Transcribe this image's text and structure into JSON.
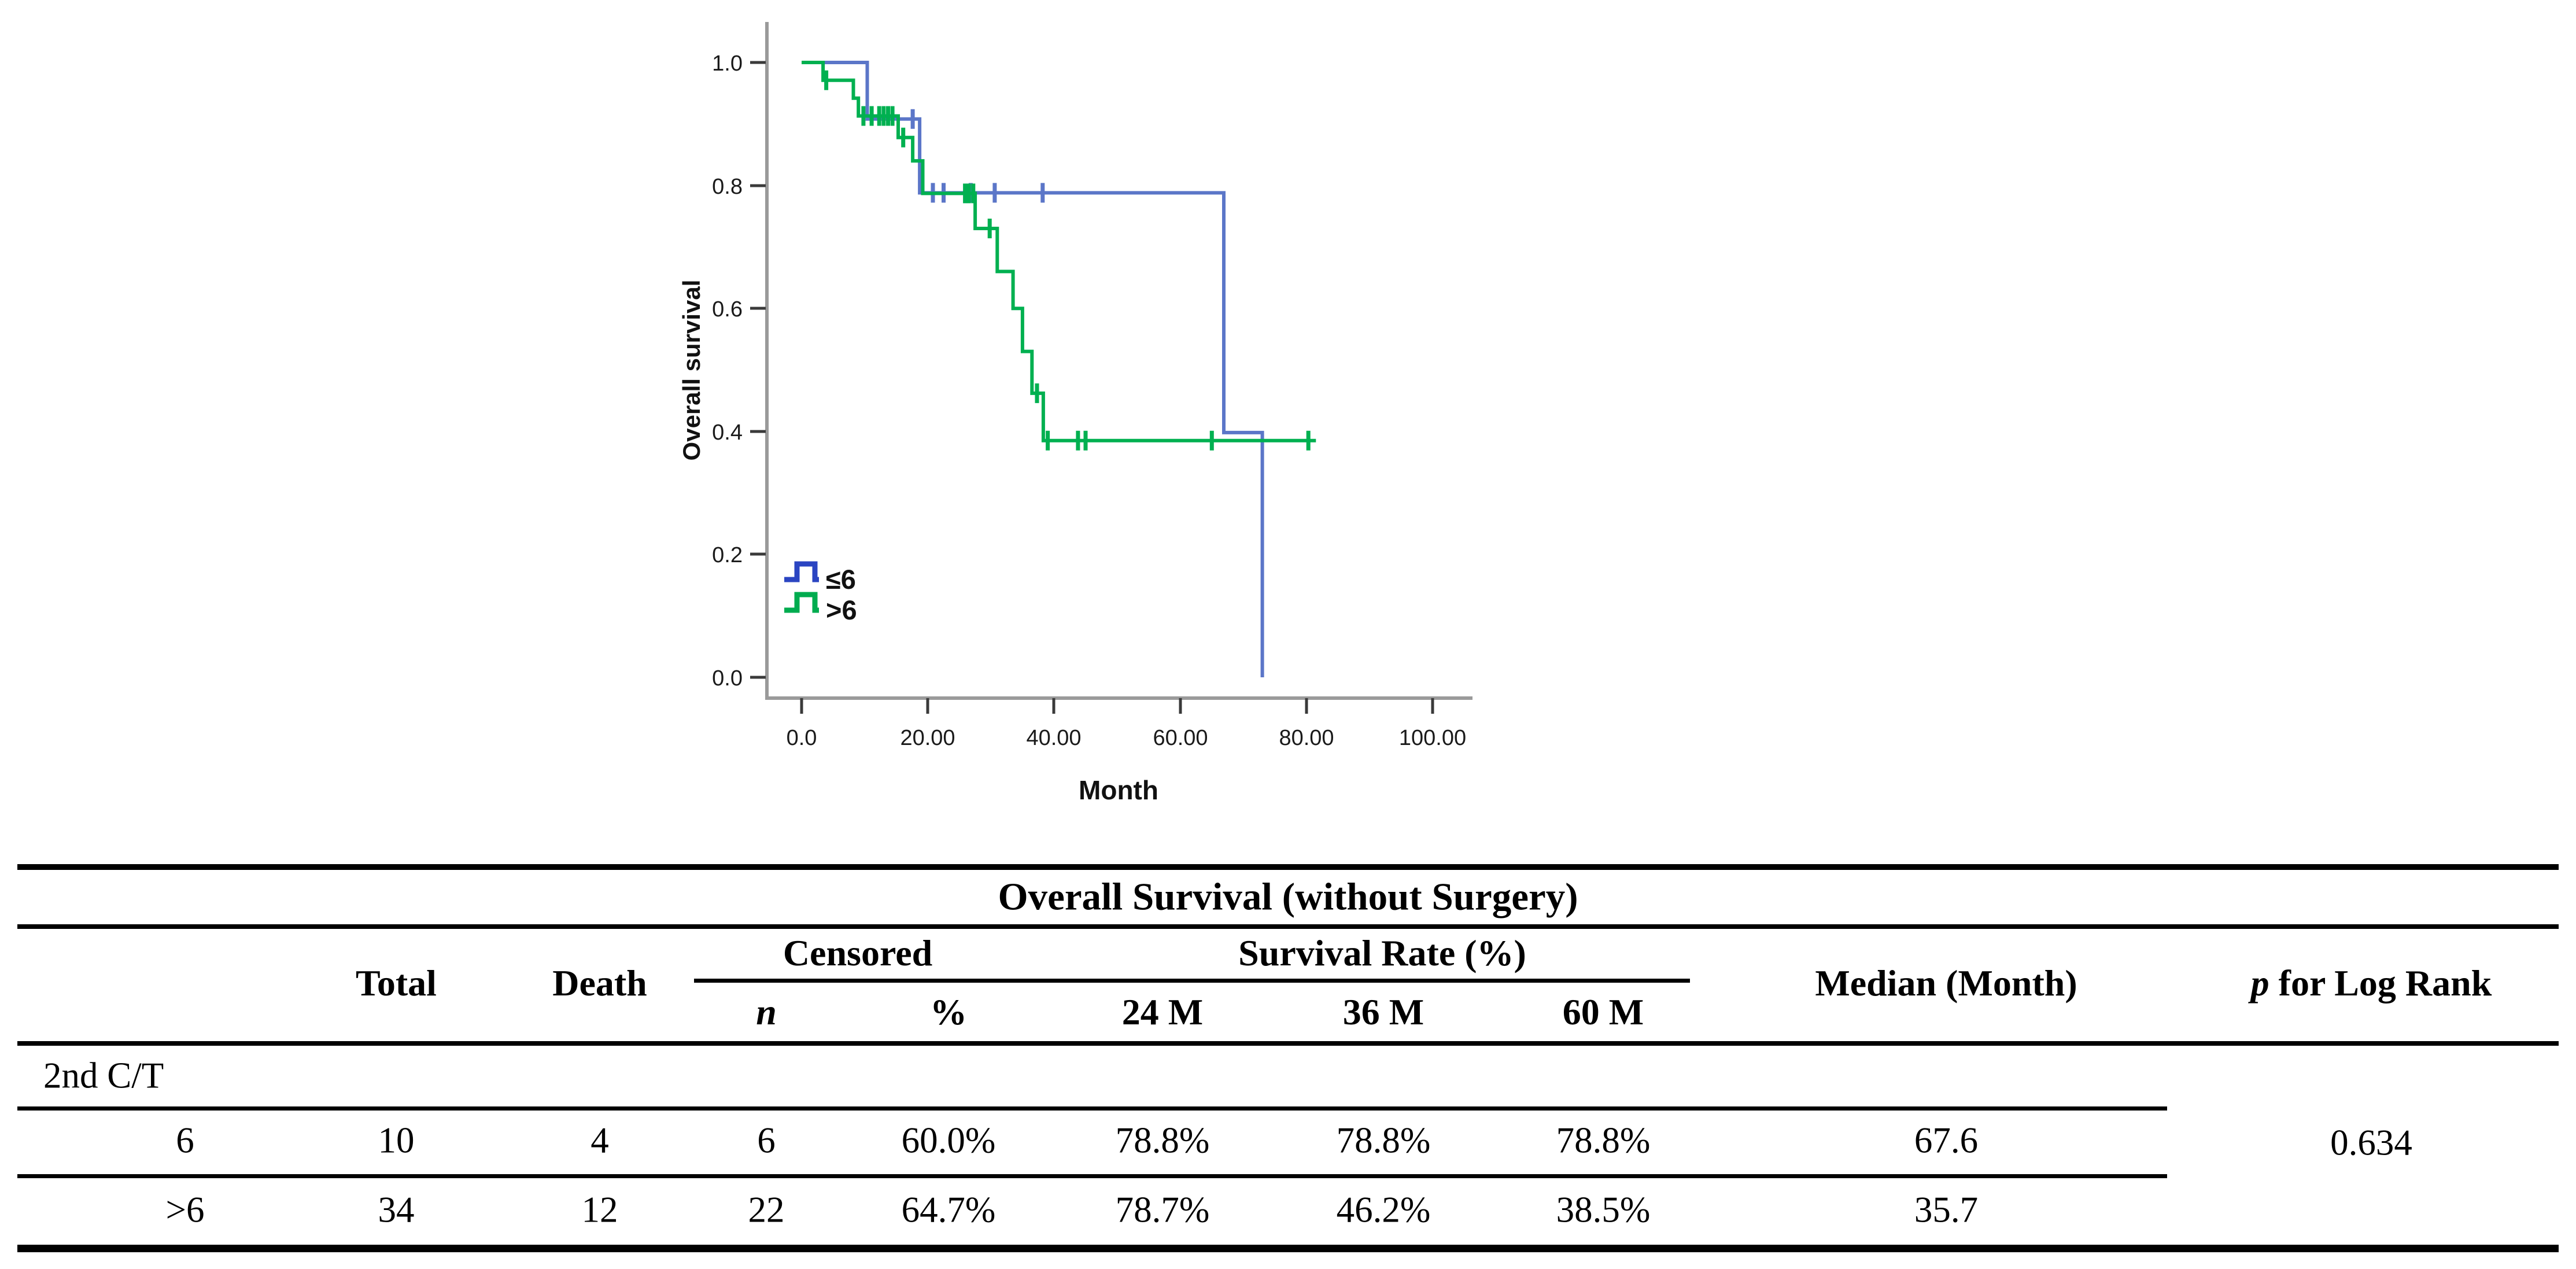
{
  "chart": {
    "ylabel": "Overall survival",
    "xlabel": "Month",
    "y_tick_labels": [
      "0.0",
      "0.2",
      "0.4",
      "0.6",
      "0.8",
      "1.0"
    ],
    "x_tick_labels": [
      "0.0",
      "20.00",
      "40.00",
      "60.00",
      "80.00",
      "100.00"
    ],
    "legend": [
      {
        "label": "≤6",
        "color": "#2b45c2"
      },
      {
        "label": ">6",
        "color": "#00ac4f"
      }
    ]
  },
  "chart_data": {
    "type": "line",
    "subtype": "kaplan-meier-step-curves",
    "title": "",
    "xlabel": "Month",
    "ylabel": "Overall survival",
    "xlim": [
      -5.5,
      106
    ],
    "ylim": [
      0.0,
      1.05
    ],
    "x_ticks": [
      0,
      20,
      40,
      60,
      80,
      100
    ],
    "y_ticks": [
      0.0,
      0.2,
      0.4,
      0.6,
      0.8,
      1.0
    ],
    "grid": false,
    "legend_position": "inside-lower-left",
    "series": [
      {
        "name": "≤6",
        "color": "#5b76c8",
        "steps": [
          [
            0,
            1.0
          ],
          [
            10.4,
            1.0
          ],
          [
            10.4,
            0.908
          ],
          [
            18.7,
            0.908
          ],
          [
            18.7,
            0.788
          ],
          [
            66.9,
            0.788
          ],
          [
            66.9,
            0.398
          ],
          [
            73.0,
            0.398
          ],
          [
            73.0,
            0.0
          ]
        ],
        "censors": [
          [
            17.6,
            0.908
          ],
          [
            20.8,
            0.788
          ],
          [
            22.5,
            0.788
          ],
          [
            26.8,
            0.788
          ],
          [
            30.6,
            0.788
          ],
          [
            38.2,
            0.788
          ]
        ]
      },
      {
        "name": ">6",
        "color": "#00b050",
        "steps": [
          [
            0,
            1.0
          ],
          [
            3.4,
            1.0
          ],
          [
            3.4,
            0.971
          ],
          [
            8.2,
            0.971
          ],
          [
            8.2,
            0.942
          ],
          [
            9.0,
            0.942
          ],
          [
            9.0,
            0.913
          ],
          [
            15.3,
            0.913
          ],
          [
            15.3,
            0.878
          ],
          [
            17.6,
            0.878
          ],
          [
            17.6,
            0.84
          ],
          [
            19.2,
            0.84
          ],
          [
            19.2,
            0.787
          ],
          [
            27.5,
            0.787
          ],
          [
            27.5,
            0.73
          ],
          [
            31.0,
            0.73
          ],
          [
            31.0,
            0.66
          ],
          [
            33.5,
            0.66
          ],
          [
            33.5,
            0.6
          ],
          [
            35.0,
            0.6
          ],
          [
            35.0,
            0.53
          ],
          [
            36.5,
            0.53
          ],
          [
            36.5,
            0.462
          ],
          [
            38.3,
            0.462
          ],
          [
            38.3,
            0.385
          ],
          [
            81.5,
            0.385
          ]
        ],
        "censors": [
          [
            3.9,
            0.971
          ],
          [
            9.8,
            0.913
          ],
          [
            11.1,
            0.913
          ],
          [
            12.3,
            0.913
          ],
          [
            13.0,
            0.913
          ],
          [
            13.7,
            0.913
          ],
          [
            14.4,
            0.913
          ],
          [
            16.1,
            0.878
          ],
          [
            25.9,
            0.787
          ],
          [
            26.5,
            0.787
          ],
          [
            27.2,
            0.787
          ],
          [
            29.8,
            0.73
          ],
          [
            37.3,
            0.462
          ],
          [
            39.0,
            0.385
          ],
          [
            43.8,
            0.385
          ],
          [
            45.0,
            0.385
          ],
          [
            65.0,
            0.385
          ],
          [
            80.3,
            0.385
          ]
        ]
      }
    ]
  },
  "table": {
    "title": "Overall Survival (without Surgery)",
    "headers": {
      "total": "Total",
      "death": "Death",
      "censored_group": "Censored",
      "survival_group": "Survival Rate (%)",
      "n": "n",
      "pct": "%",
      "m24": "24 M",
      "m36": "36 M",
      "m60": "60 M",
      "median": "Median (Month)",
      "p_prefix": "p",
      "p_rest": " for Log Rank"
    },
    "group_label": "2nd C/T",
    "rows": [
      {
        "label": "6",
        "total": "10",
        "death": "4",
        "n": "6",
        "pct": "60.0%",
        "m24": "78.8%",
        "m36": "78.8%",
        "m60": "78.8%",
        "median": "67.6"
      },
      {
        "label": ">6",
        "total": "34",
        "death": "12",
        "n": "22",
        "pct": "64.7%",
        "m24": "78.7%",
        "m36": "46.2%",
        "m60": "38.5%",
        "median": "35.7"
      }
    ],
    "p_value": "0.634"
  }
}
